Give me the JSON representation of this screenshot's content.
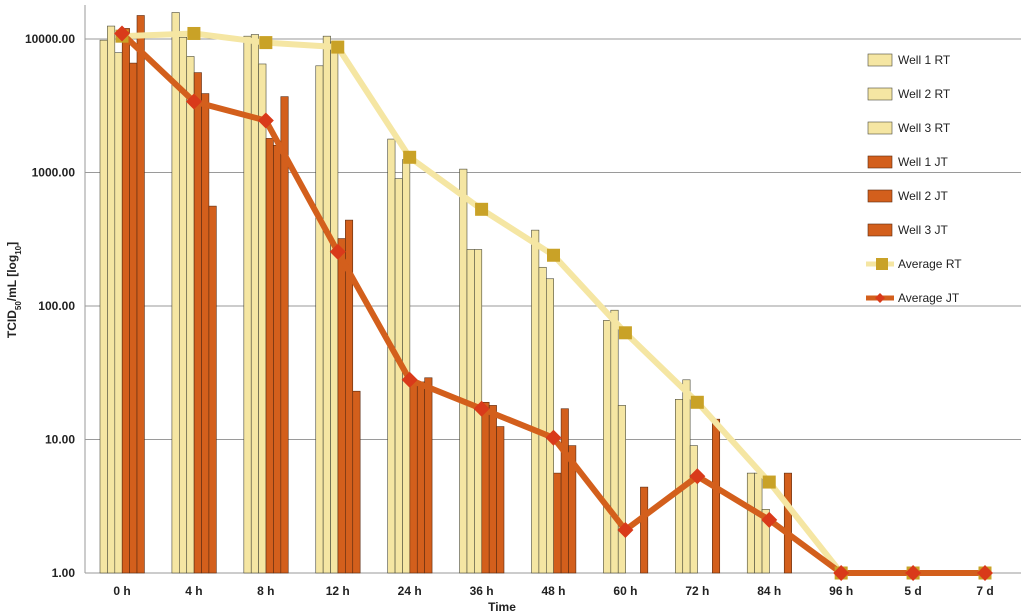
{
  "chart_data": {
    "type": "bar",
    "scale": "log",
    "xlabel": "Time",
    "ylabel_main": "TCID",
    "ylabel_sub": "50",
    "ylabel_mid": "/mL [log",
    "ylabel_sub2": "10",
    "ylabel_end": "]",
    "ylim": [
      1,
      17000
    ],
    "yticks": [
      {
        "value": 1,
        "label": "1.00"
      },
      {
        "value": 10,
        "label": "10.00"
      },
      {
        "value": 100,
        "label": "100.00"
      },
      {
        "value": 1000,
        "label": "1000.00"
      },
      {
        "value": 10000,
        "label": "10000.00"
      }
    ],
    "categories": [
      "0 h",
      "4 h",
      "8 h",
      "12 h",
      "24 h",
      "36 h",
      "48 h",
      "60 h",
      "72 h",
      "84 h",
      "96 h",
      "5 d",
      "7 d"
    ],
    "bar_series": [
      {
        "name": "Well 1 RT",
        "color": "#f5e6a3",
        "values": [
          9800,
          15800,
          10500,
          6300,
          1780,
          1060,
          370,
          78,
          20,
          5.6,
          1,
          1,
          1
        ]
      },
      {
        "name": "Well 2 RT",
        "color": "#f5e6a3",
        "values": [
          12500,
          10300,
          10800,
          10500,
          900,
          265,
          195,
          93,
          28,
          5.6,
          1,
          1,
          1
        ]
      },
      {
        "name": "Well 3 RT",
        "color": "#f5e6a3",
        "values": [
          7900,
          7400,
          6500,
          9500,
          1250,
          265,
          160,
          18,
          9,
          3,
          1,
          1,
          1
        ]
      },
      {
        "name": "Well 1 JT",
        "color": "#d35f1c",
        "values": [
          12000,
          5600,
          1800,
          320,
          28,
          19,
          5.6,
          1,
          1,
          1,
          1,
          1,
          1
        ]
      },
      {
        "name": "Well 2 JT",
        "color": "#d35f1c",
        "values": [
          6600,
          3900,
          1600,
          440,
          27,
          18,
          17,
          1,
          1,
          1,
          1,
          1,
          1
        ]
      },
      {
        "name": "Well 3 JT",
        "color": "#d35f1c",
        "values": [
          15000,
          560,
          3700,
          23,
          29,
          12.5,
          9,
          4.4,
          14.2,
          5.6,
          1,
          1,
          1
        ]
      }
    ],
    "line_series": [
      {
        "name": "Average RT",
        "color": "#f5e6a3",
        "marker_color": "#c9a227",
        "marker": "square",
        "values": [
          10500,
          11000,
          9400,
          8700,
          1300,
          530,
          240,
          63,
          19,
          4.8,
          1,
          1,
          1
        ]
      },
      {
        "name": "Average JT",
        "color": "#d35f1c",
        "marker_color": "#d93a1a",
        "marker": "diamond",
        "values": [
          11000,
          3400,
          2450,
          255,
          28,
          17,
          10.3,
          2.1,
          5.3,
          2.5,
          1,
          1,
          1
        ]
      }
    ],
    "grid": true,
    "legend_position": "right"
  }
}
